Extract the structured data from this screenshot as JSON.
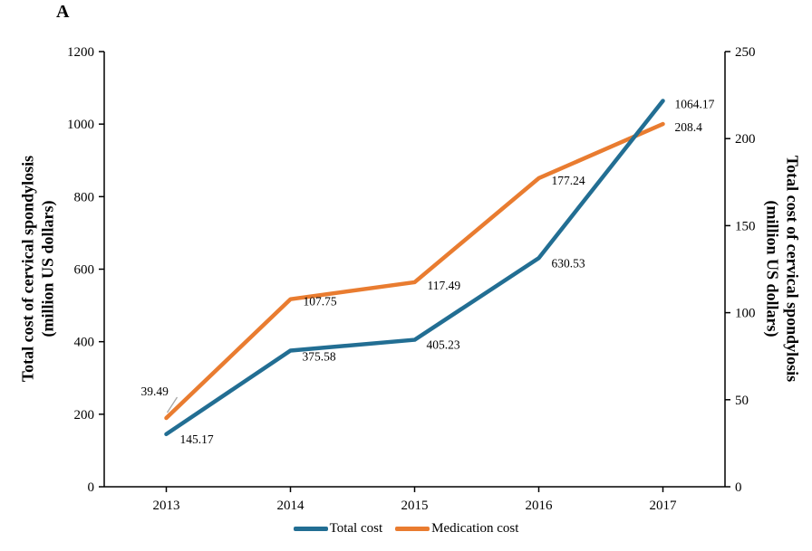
{
  "panel_label": "A",
  "axis_titles": {
    "left": [
      "Total cost of cervical spondylosis",
      "(million  US dollars)"
    ],
    "right": [
      "Total cost of cervical spondylosis",
      "(million  US dollars)"
    ]
  },
  "chart_data": {
    "type": "line",
    "title": "",
    "categories": [
      "2013",
      "2014",
      "2015",
      "2016",
      "2017"
    ],
    "series": [
      {
        "name": "Total cost",
        "axis": "left",
        "color": "#226E93",
        "values": [
          145.17,
          375.58,
          405.23,
          630.53,
          1064.17
        ],
        "point_labels": [
          "145.17",
          "375.58",
          "405.23",
          "630.53",
          "1064.17"
        ],
        "label_offsets": [
          [
            15,
            10
          ],
          [
            13,
            11
          ],
          [
            13,
            10
          ],
          [
            14,
            10
          ],
          [
            13,
            8
          ]
        ]
      },
      {
        "name": "Medication cost",
        "axis": "right",
        "color": "#E97C30",
        "values": [
          39.49,
          107.75,
          117.49,
          177.24,
          208.4
        ],
        "point_labels": [
          "39.49",
          "107.75",
          "117.49",
          "177.24",
          "208.4"
        ],
        "label_offsets": [
          [
            -28,
            -25
          ],
          [
            14,
            7
          ],
          [
            14,
            8
          ],
          [
            14,
            7
          ],
          [
            13,
            8
          ]
        ]
      }
    ],
    "left_axis": {
      "label": "Total cost of cervical spondylosis (million US dollars)",
      "min": 0,
      "max": 1200,
      "step": 200,
      "ticks": [
        "0",
        "200",
        "400",
        "600",
        "800",
        "1000",
        "1200"
      ]
    },
    "right_axis": {
      "label": "Total cost of cervical spondylosis (million US dollars)",
      "min": 0,
      "max": 250,
      "step": 50,
      "ticks": [
        "0",
        "50",
        "100",
        "150",
        "200",
        "250"
      ]
    },
    "xlabel": "",
    "grid": false,
    "legend": {
      "position": "bottom",
      "entries": [
        "Total cost",
        "Medication cost"
      ]
    },
    "leader_lines": [
      {
        "series": 1,
        "point": 0,
        "from": [
          12,
          -23
        ],
        "to": [
          1,
          -6
        ],
        "color": "#A6A6A6"
      }
    ]
  }
}
